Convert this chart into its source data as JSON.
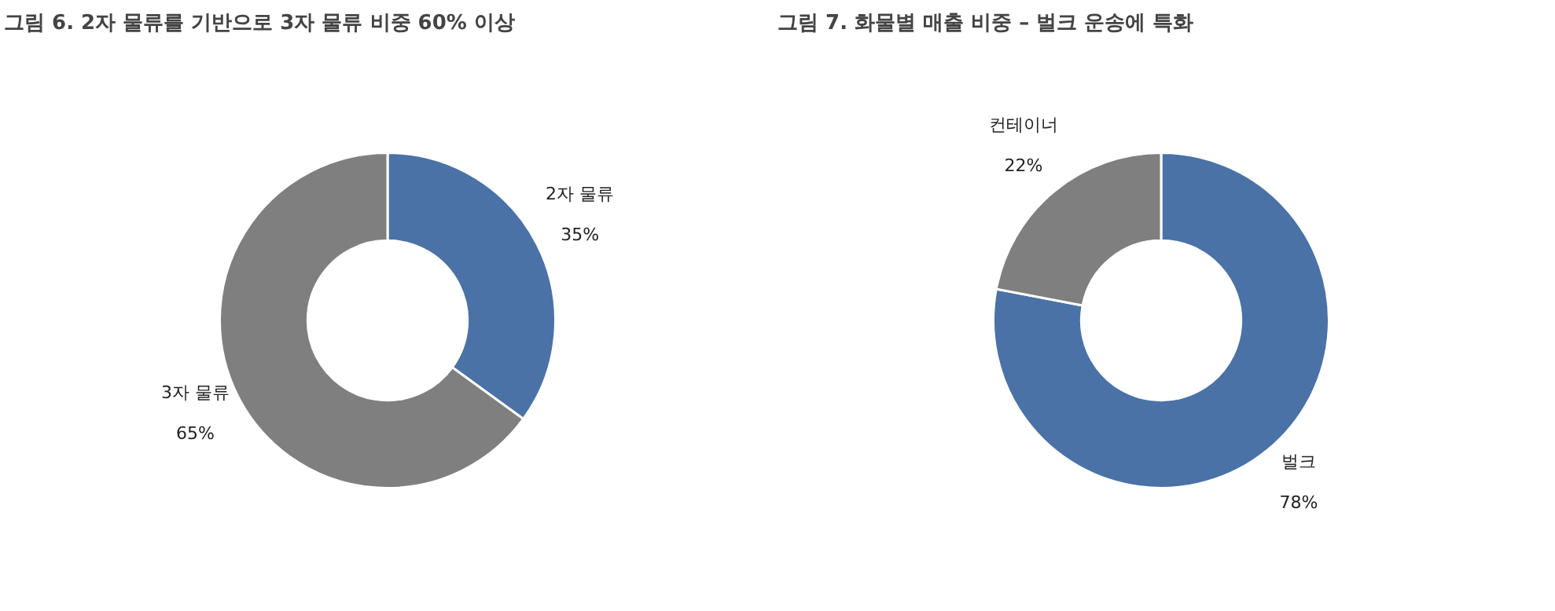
{
  "chart_data": [
    {
      "type": "donut",
      "title": "그림 6. 2자 물류를 기반으로 3자 물류 비중 60% 이상",
      "categories": [
        "2자 물류",
        "3자 물류"
      ],
      "values": [
        35,
        65
      ],
      "colors": [
        "#4a72a6",
        "#7f7f7f"
      ],
      "value_labels": [
        "35%",
        "65%"
      ]
    },
    {
      "type": "donut",
      "title": "그림 7. 화물별 매출 비중 – 벌크 운송에 특화",
      "categories": [
        "벌크",
        "컨테이너"
      ],
      "values": [
        78,
        22
      ],
      "colors": [
        "#4a72a6",
        "#7f7f7f"
      ],
      "value_labels": [
        "78%",
        "22%"
      ]
    }
  ]
}
